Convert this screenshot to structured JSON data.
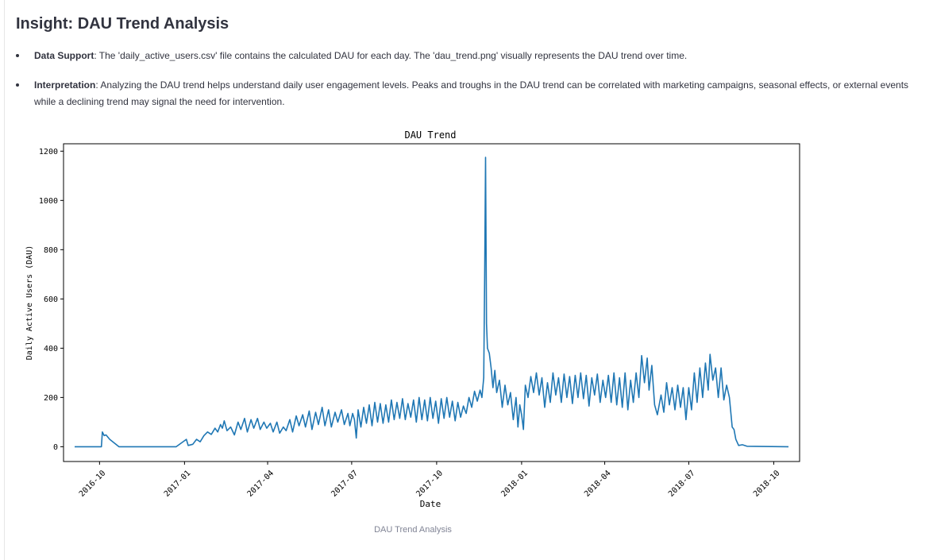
{
  "heading": "Insight: DAU Trend Analysis",
  "bullets": [
    {
      "label": "Data Support",
      "text": ": The 'daily_active_users.csv' file contains the calculated DAU for each day. The 'dau_trend.png' visually represents the DAU trend over time."
    },
    {
      "label": "Interpretation",
      "text": ": Analyzing the DAU trend helps understand daily user engagement levels. Peaks and troughs in the DAU trend can be correlated with marketing campaigns, seasonal effects, or external events",
      "text2": "while a declining trend may signal the need for intervention."
    }
  ],
  "caption": "DAU Trend Analysis",
  "colors": {
    "line": "#1f77b4",
    "text": "#31333f",
    "caption": "#808495"
  },
  "chart_data": {
    "type": "line",
    "title": "DAU Trend",
    "xlabel": "Date",
    "ylabel": "Daily Active Users (DAU)",
    "ylim": [
      -60,
      1230
    ],
    "xlim": [
      "2016-08-23",
      "2018-10-29"
    ],
    "grid": false,
    "yticks": [
      0,
      200,
      400,
      600,
      800,
      1000,
      1200
    ],
    "xticks": [
      "2016-10",
      "2017-01",
      "2017-04",
      "2017-07",
      "2017-10",
      "2018-01",
      "2018-04",
      "2018-07",
      "2018-10"
    ],
    "series": [
      {
        "points": [
          [
            "2016-09-04",
            0
          ],
          [
            "2016-10-03",
            0
          ],
          [
            "2016-10-04",
            60
          ],
          [
            "2016-10-06",
            45
          ],
          [
            "2016-10-08",
            48
          ],
          [
            "2016-10-12",
            30
          ],
          [
            "2016-10-17",
            15
          ],
          [
            "2016-10-22",
            0
          ],
          [
            "2016-12-23",
            0
          ],
          [
            "2017-01-03",
            30
          ],
          [
            "2017-01-05",
            5
          ],
          [
            "2017-01-10",
            10
          ],
          [
            "2017-01-14",
            30
          ],
          [
            "2017-01-18",
            20
          ],
          [
            "2017-01-22",
            45
          ],
          [
            "2017-01-26",
            60
          ],
          [
            "2017-01-30",
            50
          ],
          [
            "2017-02-03",
            75
          ],
          [
            "2017-02-06",
            60
          ],
          [
            "2017-02-09",
            90
          ],
          [
            "2017-02-11",
            75
          ],
          [
            "2017-02-13",
            105
          ],
          [
            "2017-02-16",
            65
          ],
          [
            "2017-02-20",
            80
          ],
          [
            "2017-02-24",
            48
          ],
          [
            "2017-02-28",
            100
          ],
          [
            "2017-03-03",
            70
          ],
          [
            "2017-03-07",
            115
          ],
          [
            "2017-03-10",
            60
          ],
          [
            "2017-03-14",
            110
          ],
          [
            "2017-03-17",
            75
          ],
          [
            "2017-03-21",
            115
          ],
          [
            "2017-03-24",
            70
          ],
          [
            "2017-03-28",
            100
          ],
          [
            "2017-03-31",
            75
          ],
          [
            "2017-04-04",
            95
          ],
          [
            "2017-04-07",
            60
          ],
          [
            "2017-04-11",
            100
          ],
          [
            "2017-04-14",
            55
          ],
          [
            "2017-04-18",
            80
          ],
          [
            "2017-04-21",
            65
          ],
          [
            "2017-04-25",
            110
          ],
          [
            "2017-04-28",
            60
          ],
          [
            "2017-05-02",
            125
          ],
          [
            "2017-05-05",
            85
          ],
          [
            "2017-05-09",
            130
          ],
          [
            "2017-05-12",
            80
          ],
          [
            "2017-05-16",
            145
          ],
          [
            "2017-05-19",
            70
          ],
          [
            "2017-05-23",
            140
          ],
          [
            "2017-05-26",
            90
          ],
          [
            "2017-05-30",
            160
          ],
          [
            "2017-06-02",
            85
          ],
          [
            "2017-06-06",
            150
          ],
          [
            "2017-06-09",
            80
          ],
          [
            "2017-06-13",
            140
          ],
          [
            "2017-06-16",
            100
          ],
          [
            "2017-06-20",
            150
          ],
          [
            "2017-06-23",
            90
          ],
          [
            "2017-06-27",
            135
          ],
          [
            "2017-06-29",
            85
          ],
          [
            "2017-07-02",
            135
          ],
          [
            "2017-07-04",
            110
          ],
          [
            "2017-07-06",
            35
          ],
          [
            "2017-07-08",
            150
          ],
          [
            "2017-07-11",
            80
          ],
          [
            "2017-07-14",
            160
          ],
          [
            "2017-07-17",
            95
          ],
          [
            "2017-07-20",
            170
          ],
          [
            "2017-07-23",
            85
          ],
          [
            "2017-07-26",
            180
          ],
          [
            "2017-07-29",
            100
          ],
          [
            "2017-08-01",
            175
          ],
          [
            "2017-08-04",
            95
          ],
          [
            "2017-08-07",
            170
          ],
          [
            "2017-08-10",
            100
          ],
          [
            "2017-08-13",
            190
          ],
          [
            "2017-08-16",
            110
          ],
          [
            "2017-08-19",
            180
          ],
          [
            "2017-08-22",
            115
          ],
          [
            "2017-08-25",
            195
          ],
          [
            "2017-08-28",
            110
          ],
          [
            "2017-08-31",
            175
          ],
          [
            "2017-09-03",
            120
          ],
          [
            "2017-09-06",
            190
          ],
          [
            "2017-09-09",
            100
          ],
          [
            "2017-09-12",
            200
          ],
          [
            "2017-09-15",
            110
          ],
          [
            "2017-09-18",
            190
          ],
          [
            "2017-09-21",
            105
          ],
          [
            "2017-09-24",
            200
          ],
          [
            "2017-09-27",
            115
          ],
          [
            "2017-09-30",
            185
          ],
          [
            "2017-10-03",
            95
          ],
          [
            "2017-10-06",
            195
          ],
          [
            "2017-10-09",
            115
          ],
          [
            "2017-10-12",
            200
          ],
          [
            "2017-10-15",
            120
          ],
          [
            "2017-10-18",
            185
          ],
          [
            "2017-10-21",
            105
          ],
          [
            "2017-10-24",
            180
          ],
          [
            "2017-10-27",
            120
          ],
          [
            "2017-10-30",
            165
          ],
          [
            "2017-11-02",
            135
          ],
          [
            "2017-11-05",
            200
          ],
          [
            "2017-11-08",
            160
          ],
          [
            "2017-11-11",
            225
          ],
          [
            "2017-11-14",
            185
          ],
          [
            "2017-11-17",
            230
          ],
          [
            "2017-11-19",
            200
          ],
          [
            "2017-11-21",
            280
          ],
          [
            "2017-11-22",
            700
          ],
          [
            "2017-11-23",
            1175
          ],
          [
            "2017-11-24",
            500
          ],
          [
            "2017-11-25",
            400
          ],
          [
            "2017-11-27",
            380
          ],
          [
            "2017-11-29",
            320
          ],
          [
            "2017-12-01",
            240
          ],
          [
            "2017-12-03",
            310
          ],
          [
            "2017-12-05",
            220
          ],
          [
            "2017-12-08",
            270
          ],
          [
            "2017-12-11",
            160
          ],
          [
            "2017-12-14",
            250
          ],
          [
            "2017-12-17",
            170
          ],
          [
            "2017-12-20",
            220
          ],
          [
            "2017-12-23",
            110
          ],
          [
            "2017-12-26",
            200
          ],
          [
            "2017-12-28",
            80
          ],
          [
            "2017-12-30",
            170
          ],
          [
            "2018-01-01",
            130
          ],
          [
            "2018-01-03",
            70
          ],
          [
            "2018-01-05",
            250
          ],
          [
            "2018-01-08",
            200
          ],
          [
            "2018-01-11",
            285
          ],
          [
            "2018-01-14",
            220
          ],
          [
            "2018-01-17",
            300
          ],
          [
            "2018-01-20",
            210
          ],
          [
            "2018-01-23",
            280
          ],
          [
            "2018-01-26",
            160
          ],
          [
            "2018-01-29",
            260
          ],
          [
            "2018-02-01",
            180
          ],
          [
            "2018-02-04",
            300
          ],
          [
            "2018-02-07",
            210
          ],
          [
            "2018-02-10",
            280
          ],
          [
            "2018-02-13",
            180
          ],
          [
            "2018-02-16",
            295
          ],
          [
            "2018-02-19",
            200
          ],
          [
            "2018-02-22",
            285
          ],
          [
            "2018-02-25",
            175
          ],
          [
            "2018-02-28",
            290
          ],
          [
            "2018-03-03",
            200
          ],
          [
            "2018-03-06",
            300
          ],
          [
            "2018-03-09",
            195
          ],
          [
            "2018-03-12",
            290
          ],
          [
            "2018-03-15",
            165
          ],
          [
            "2018-03-18",
            280
          ],
          [
            "2018-03-21",
            210
          ],
          [
            "2018-03-24",
            295
          ],
          [
            "2018-03-27",
            180
          ],
          [
            "2018-03-30",
            270
          ],
          [
            "2018-04-02",
            200
          ],
          [
            "2018-04-05",
            290
          ],
          [
            "2018-04-08",
            180
          ],
          [
            "2018-04-11",
            300
          ],
          [
            "2018-04-14",
            170
          ],
          [
            "2018-04-17",
            280
          ],
          [
            "2018-04-20",
            160
          ],
          [
            "2018-04-23",
            300
          ],
          [
            "2018-04-26",
            150
          ],
          [
            "2018-04-29",
            270
          ],
          [
            "2018-05-02",
            180
          ],
          [
            "2018-05-05",
            300
          ],
          [
            "2018-05-08",
            200
          ],
          [
            "2018-05-11",
            370
          ],
          [
            "2018-05-14",
            260
          ],
          [
            "2018-05-17",
            360
          ],
          [
            "2018-05-19",
            230
          ],
          [
            "2018-05-22",
            330
          ],
          [
            "2018-05-25",
            170
          ],
          [
            "2018-05-28",
            130
          ],
          [
            "2018-06-01",
            210
          ],
          [
            "2018-06-04",
            140
          ],
          [
            "2018-06-07",
            260
          ],
          [
            "2018-06-10",
            170
          ],
          [
            "2018-06-13",
            240
          ],
          [
            "2018-06-16",
            150
          ],
          [
            "2018-06-19",
            250
          ],
          [
            "2018-06-22",
            160
          ],
          [
            "2018-06-25",
            240
          ],
          [
            "2018-06-28",
            110
          ],
          [
            "2018-07-01",
            240
          ],
          [
            "2018-07-04",
            150
          ],
          [
            "2018-07-07",
            300
          ],
          [
            "2018-07-10",
            180
          ],
          [
            "2018-07-13",
            320
          ],
          [
            "2018-07-16",
            200
          ],
          [
            "2018-07-19",
            340
          ],
          [
            "2018-07-22",
            230
          ],
          [
            "2018-07-24",
            375
          ],
          [
            "2018-07-27",
            270
          ],
          [
            "2018-07-30",
            320
          ],
          [
            "2018-08-02",
            200
          ],
          [
            "2018-08-05",
            320
          ],
          [
            "2018-08-08",
            190
          ],
          [
            "2018-08-11",
            250
          ],
          [
            "2018-08-14",
            200
          ],
          [
            "2018-08-17",
            80
          ],
          [
            "2018-08-19",
            70
          ],
          [
            "2018-08-21",
            30
          ],
          [
            "2018-08-24",
            5
          ],
          [
            "2018-08-28",
            8
          ],
          [
            "2018-09-02",
            2
          ],
          [
            "2018-10-17",
            0
          ]
        ]
      }
    ]
  }
}
